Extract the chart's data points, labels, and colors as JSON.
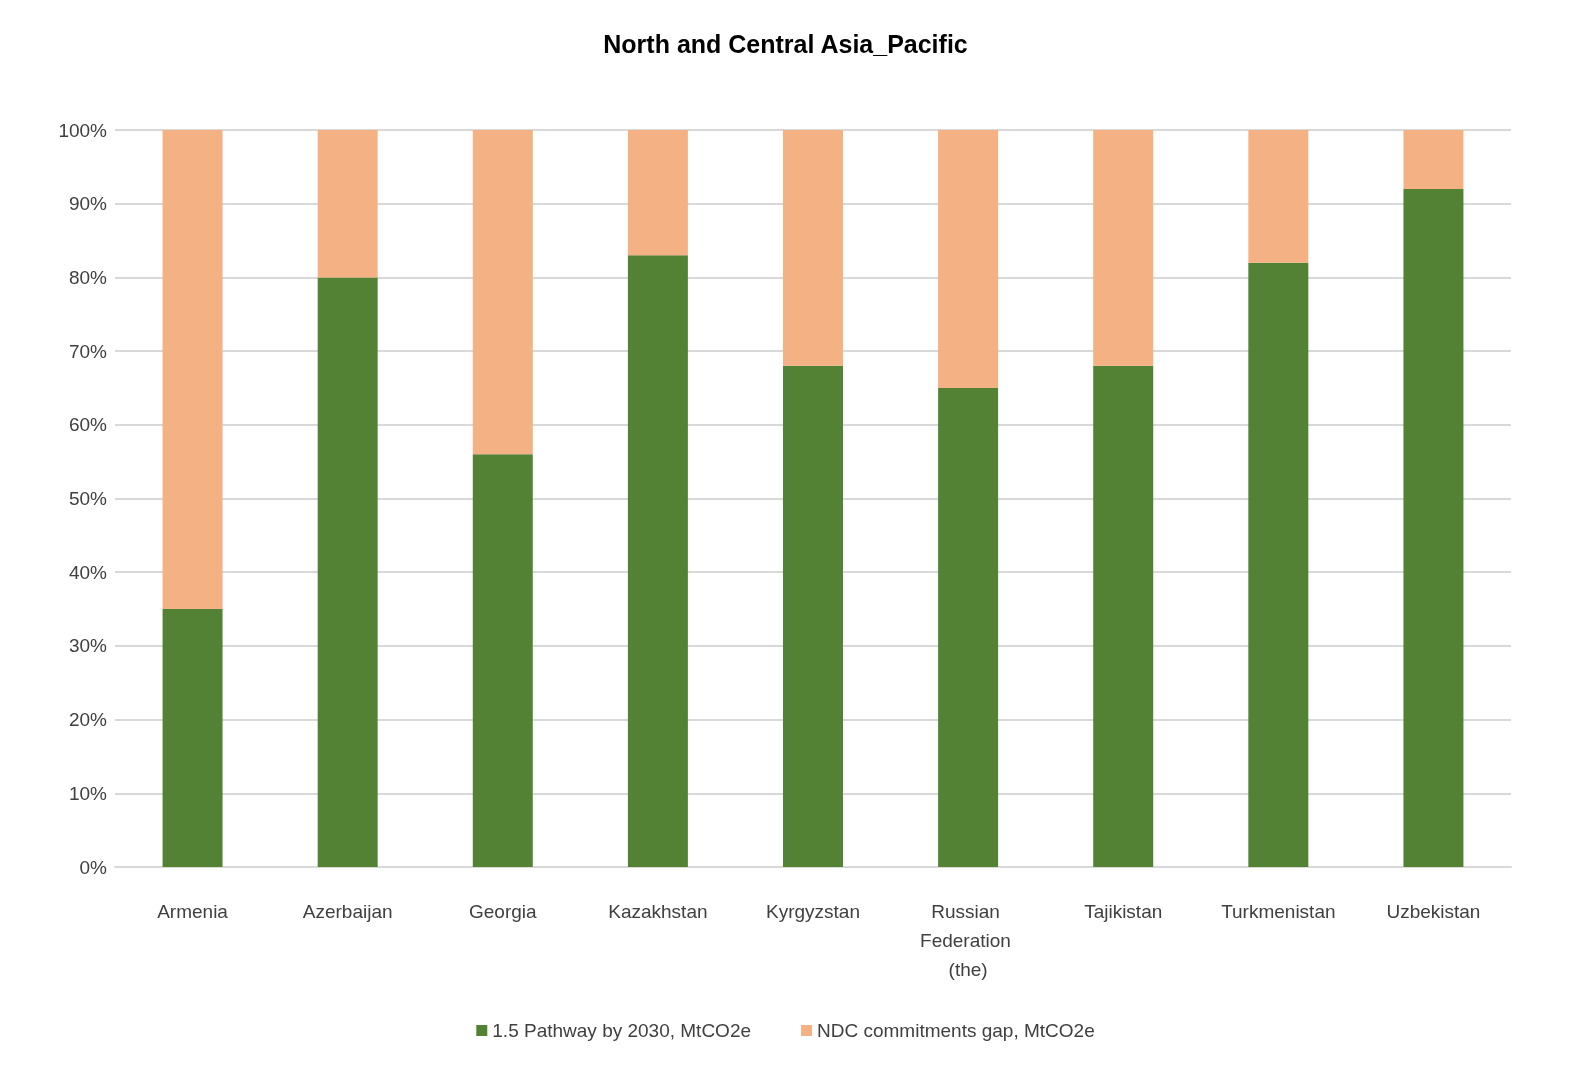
{
  "chart_data": {
    "type": "bar",
    "title": "North and Central Asia_Pacific",
    "stacked": true,
    "categories": [
      "Armenia",
      "Azerbaijan",
      "Georgia",
      "Kazakhstan",
      "Kyrgyzstan",
      "Russian Federation (the)",
      "Tajikistan",
      "Turkmenistan",
      "Uzbekistan"
    ],
    "series": [
      {
        "name": "1.5 Pathway by 2030, MtCO2e",
        "color": "#548235",
        "values": [
          35,
          80,
          56,
          83,
          68,
          65,
          68,
          82,
          92
        ]
      },
      {
        "name": "NDC commitments gap, MtCO2e",
        "color": "#f4b183",
        "values": [
          65,
          20,
          44,
          17,
          32,
          35,
          32,
          18,
          8
        ]
      }
    ],
    "ylim": [
      0,
      100
    ],
    "yticks": [
      {
        "value": 0,
        "label": "0%"
      },
      {
        "value": 10,
        "label": "10%"
      },
      {
        "value": 20,
        "label": "20%"
      },
      {
        "value": 30,
        "label": "30%"
      },
      {
        "value": 40,
        "label": "40%"
      },
      {
        "value": 50,
        "label": "50%"
      },
      {
        "value": 60,
        "label": "60%"
      },
      {
        "value": 70,
        "label": "70%"
      },
      {
        "value": 80,
        "label": "80%"
      },
      {
        "value": 90,
        "label": "90%"
      },
      {
        "value": 100,
        "label": "100%"
      }
    ],
    "grid": "y",
    "legend": "bottom"
  }
}
